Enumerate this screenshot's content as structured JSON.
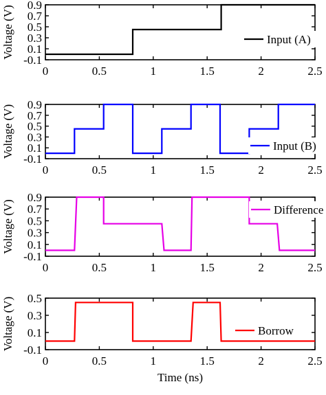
{
  "chart_data": [
    {
      "type": "line",
      "ylabel": "Voltage (V)",
      "xlabel": "",
      "xlim": [
        0,
        2.5
      ],
      "ylim": [
        -0.1,
        0.9
      ],
      "xticks": [
        "0",
        "0.5",
        "1",
        "1.5",
        "2",
        "2.5"
      ],
      "yticks": [
        "-0.1",
        "0.1",
        "0.3",
        "0.5",
        "0.7",
        "0.9"
      ],
      "legend_position": "center-right",
      "grid": false,
      "series": [
        {
          "name": "Input (A)",
          "color": "#000000",
          "points": [
            [
              0,
              0
            ],
            [
              0.81,
              0
            ],
            [
              0.81,
              0.45
            ],
            [
              1.63,
              0.45
            ],
            [
              1.63,
              0.9
            ],
            [
              2.5,
              0.9
            ]
          ]
        }
      ]
    },
    {
      "type": "line",
      "ylabel": "Voltage (V)",
      "xlabel": "",
      "xlim": [
        0,
        2.5
      ],
      "ylim": [
        -0.1,
        0.9
      ],
      "xticks": [
        "0",
        "0.5",
        "1",
        "1.5",
        "2",
        "2.5"
      ],
      "yticks": [
        "-0.1",
        "0.1",
        "0.3",
        "0.5",
        "0.7",
        "0.9"
      ],
      "legend_position": "bottom-right",
      "grid": false,
      "series": [
        {
          "name": "Input (B)",
          "color": "#0000ff",
          "points": [
            [
              0,
              0
            ],
            [
              0.27,
              0
            ],
            [
              0.27,
              0.45
            ],
            [
              0.54,
              0.45
            ],
            [
              0.54,
              0.9
            ],
            [
              0.81,
              0.9
            ],
            [
              0.81,
              0
            ],
            [
              1.08,
              0
            ],
            [
              1.08,
              0.45
            ],
            [
              1.35,
              0.45
            ],
            [
              1.35,
              0.9
            ],
            [
              1.62,
              0.9
            ],
            [
              1.62,
              0
            ],
            [
              1.89,
              0
            ],
            [
              1.89,
              0.45
            ],
            [
              2.16,
              0.45
            ],
            [
              2.16,
              0.9
            ],
            [
              2.5,
              0.9
            ]
          ]
        }
      ]
    },
    {
      "type": "line",
      "ylabel": "Voltage (V)",
      "xlabel": "",
      "xlim": [
        0,
        2.5
      ],
      "ylim": [
        -0.1,
        0.9
      ],
      "xticks": [
        "0",
        "0.5",
        "1",
        "1.5",
        "2",
        "2.5"
      ],
      "yticks": [
        "-0.1",
        "0.1",
        "0.3",
        "0.5",
        "0.7",
        "0.9"
      ],
      "legend_position": "top-right",
      "grid": false,
      "series": [
        {
          "name": "Difference",
          "color": "#e600e6",
          "points": [
            [
              0,
              0
            ],
            [
              0.27,
              0
            ],
            [
              0.29,
              0.9
            ],
            [
              0.54,
              0.9
            ],
            [
              0.54,
              0.45
            ],
            [
              1.08,
              0.45
            ],
            [
              1.1,
              0
            ],
            [
              1.35,
              0
            ],
            [
              1.36,
              0.9
            ],
            [
              1.89,
              0.9
            ],
            [
              1.89,
              0.45
            ],
            [
              2.15,
              0.45
            ],
            [
              2.17,
              0
            ],
            [
              2.5,
              0
            ]
          ]
        }
      ]
    },
    {
      "type": "line",
      "ylabel": "Voltage (V)",
      "xlabel": "Time (ns)",
      "xlim": [
        0,
        2.5
      ],
      "ylim": [
        -0.1,
        0.5
      ],
      "xticks": [
        "0",
        "0.5",
        "1",
        "1.5",
        "2",
        "2.5"
      ],
      "yticks": [
        "-0.1",
        "0.1",
        "0.3",
        "0.5"
      ],
      "legend_position": "center-right",
      "grid": false,
      "series": [
        {
          "name": "Borrow",
          "color": "#ff0000",
          "points": [
            [
              0,
              0
            ],
            [
              0.27,
              0
            ],
            [
              0.28,
              0.45
            ],
            [
              0.81,
              0.45
            ],
            [
              0.81,
              0
            ],
            [
              1.35,
              0
            ],
            [
              1.37,
              0.45
            ],
            [
              1.62,
              0.45
            ],
            [
              1.63,
              0
            ],
            [
              2.5,
              0
            ]
          ]
        }
      ]
    }
  ]
}
